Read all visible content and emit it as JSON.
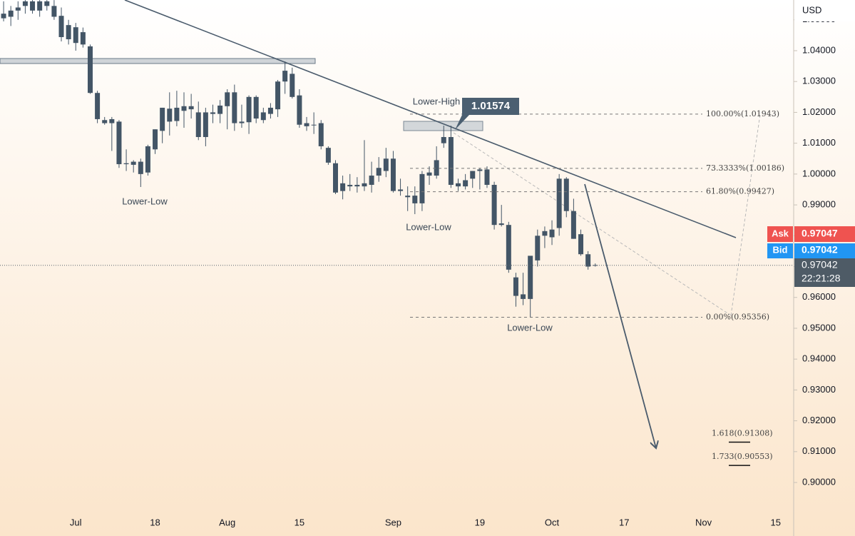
{
  "chart_data": {
    "type": "candlestick",
    "currency": "USD",
    "categories": [
      null,
      null,
      null,
      null,
      null,
      null,
      null,
      null,
      null,
      null,
      "Jul",
      null,
      null,
      null,
      null,
      null,
      null,
      null,
      null,
      null,
      null,
      "18",
      null,
      null,
      null,
      null,
      null,
      null,
      null,
      null,
      null,
      "Aug",
      null,
      null,
      null,
      null,
      null,
      null,
      null,
      null,
      null,
      "15",
      null,
      null,
      null,
      null,
      null,
      null,
      null,
      null,
      null,
      null,
      null,
      null,
      "Sep",
      null,
      null,
      null,
      null,
      null,
      null,
      null,
      null,
      null,
      null,
      null,
      "19",
      null,
      null,
      null,
      null,
      null,
      null,
      null,
      null,
      null,
      "Oct",
      null,
      null,
      null,
      null,
      null,
      null,
      null,
      null,
      null,
      "17",
      null,
      null,
      null,
      null,
      null,
      null,
      null,
      null,
      null,
      null,
      "Nov",
      null,
      null,
      null,
      null,
      null,
      null,
      null,
      null,
      null,
      "15",
      null,
      null
    ],
    "open": [
      1.052,
      1.051,
      1.053,
      1.0545,
      1.056,
      1.053,
      1.056,
      1.0545,
      1.0513,
      1.0483,
      1.0476,
      1.046,
      1.0414,
      1.0263,
      1.0175,
      1.0165,
      1.017,
      1.0035,
      1.003,
      1.0,
      1.0005,
      1.008,
      1.014,
      1.0212,
      1.0172,
      1.0205,
      1.022,
      1.02,
      1.012,
      1.02,
      1.0195,
      1.022,
      1.0265,
      1.0165,
      1.0168,
      1.025,
      1.0175,
      1.0195,
      1.021,
      1.03,
      1.0325,
      1.0255,
      1.0165,
      1.016,
      1.0165,
      1.0085,
      1.0035,
      0.9945,
      0.9965,
      0.996,
      0.996,
      0.9965,
      0.9995,
      1.001,
      1.005,
      0.995,
      0.993,
      0.993,
      0.9905,
      0.9995,
      0.9995,
      1.01,
      1.012,
      0.997,
      0.996,
      0.9985,
      1.0015,
      1.0015,
      0.9965,
      0.984,
      0.9835,
      0.9665,
      0.961,
      0.9595,
      0.972,
      0.98,
      0.9795,
      0.9825,
      0.9985,
      0.988,
      0.9805,
      0.974,
      0.9705,
      null,
      null,
      null,
      null,
      null,
      null,
      null,
      null,
      null,
      null,
      null,
      null,
      null,
      null,
      null,
      null,
      null,
      null,
      null,
      null,
      null,
      null,
      null,
      null,
      null,
      null,
      null
    ],
    "high": [
      1.056,
      1.0545,
      1.056,
      1.0564,
      1.0564,
      1.0564,
      1.0564,
      1.0564,
      1.054,
      1.05,
      1.049,
      1.0475,
      1.042,
      1.027,
      1.0185,
      1.0185,
      1.0175,
      1.008,
      1.0045,
      1.005,
      1.0095,
      1.0145,
      1.0215,
      1.0265,
      1.027,
      1.0265,
      1.026,
      1.0235,
      1.0215,
      1.0225,
      1.024,
      1.0275,
      1.029,
      1.0225,
      1.0255,
      1.0255,
      1.0215,
      1.023,
      1.0305,
      1.0365,
      1.0345,
      1.0275,
      1.0185,
      1.02,
      1.0175,
      1.009,
      1.0045,
      0.9995,
      1.0,
      0.999,
      1.011,
      1.004,
      1.0055,
      1.0085,
      1.0075,
      0.9985,
      0.996,
      0.996,
      1.001,
      1.0025,
      1.009,
      1.0157,
      1.0157,
      0.9985,
      1.0,
      1.001,
      1.002,
      1.0025,
      0.9975,
      0.99,
      0.9845,
      0.968,
      0.968,
      0.972,
      0.982,
      0.983,
      0.985,
      1.0,
      0.999,
      0.992,
      0.982,
      0.975,
      0.971,
      null,
      null,
      null,
      null,
      null,
      null,
      null,
      null,
      null,
      null,
      null,
      null,
      null,
      null,
      null,
      null,
      null,
      null,
      null,
      null,
      null,
      null,
      null,
      null,
      null,
      null,
      null
    ],
    "low": [
      1.0495,
      1.048,
      1.05,
      1.052,
      1.052,
      1.051,
      1.053,
      1.05,
      1.043,
      1.042,
      1.04,
      1.041,
      1.026,
      1.0165,
      1.016,
      1.0075,
      1.002,
      1.001,
      1.0005,
      0.9958,
      0.9995,
      1.0065,
      1.01,
      1.0125,
      1.0155,
      1.015,
      1.018,
      1.011,
      1.009,
      1.0165,
      1.0165,
      1.0145,
      1.014,
      1.015,
      1.013,
      1.0165,
      1.0165,
      1.018,
      1.0185,
      1.026,
      1.0245,
      1.015,
      1.014,
      1.013,
      1.008,
      1.003,
      0.9935,
      0.9918,
      0.9945,
      0.994,
      0.9945,
      0.994,
      0.9975,
      0.999,
      0.994,
      0.993,
      0.988,
      0.987,
      0.988,
      0.9965,
      0.9985,
      1.0085,
      0.9955,
      0.9945,
      0.995,
      0.9955,
      0.995,
      0.9955,
      0.982,
      0.983,
      0.968,
      0.957,
      0.9575,
      0.9536,
      0.97,
      0.976,
      0.977,
      0.98,
      0.986,
      0.979,
      0.9735,
      0.969,
      0.97,
      null,
      null,
      null,
      null,
      null,
      null,
      null,
      null,
      null,
      null,
      null,
      null,
      null,
      null,
      null,
      null,
      null,
      null,
      null,
      null,
      null,
      null,
      null,
      null,
      null,
      null,
      null
    ],
    "close": [
      1.0505,
      1.053,
      1.054,
      1.056,
      1.053,
      1.056,
      1.0545,
      1.051,
      1.0444,
      1.0437,
      1.0425,
      1.042,
      1.0263,
      1.0178,
      1.0165,
      1.0178,
      1.0032,
      1.0032,
      1.004,
      1.004,
      1.009,
      1.0145,
      1.0215,
      1.017,
      1.0215,
      1.022,
      1.021,
      1.012,
      1.02,
      1.0195,
      1.0222,
      1.0265,
      1.0165,
      1.017,
      1.025,
      1.018,
      1.02,
      1.0215,
      1.03,
      1.0335,
      1.025,
      1.016,
      1.0155,
      1.016,
      1.009,
      1.0037,
      0.994,
      0.997,
      0.996,
      0.9965,
      0.997,
      0.9995,
      1.002,
      1.005,
      0.9945,
      0.9945,
      0.9925,
      0.9905,
      1.0,
      1.0005,
      1.0045,
      1.012,
      0.9965,
      0.996,
      0.998,
      1.001,
      1.001,
      0.9965,
      0.9835,
      0.9835,
      0.969,
      0.9605,
      0.9595,
      0.9735,
      0.98,
      0.9815,
      0.982,
      0.9985,
      0.988,
      0.979,
      0.974,
      0.97,
      0.9704,
      null,
      null,
      null,
      null,
      null,
      null,
      null,
      null,
      null,
      null,
      null,
      null,
      null,
      null,
      null,
      null,
      null,
      null,
      null,
      null,
      null,
      null,
      null,
      null,
      null,
      null,
      null
    ],
    "color": "#435566",
    "ylim": [
      0.89098,
      1.05643
    ],
    "yticks": [
      {
        "value": 1.05,
        "label": "1.05000"
      },
      {
        "value": 1.04,
        "label": "1.04000"
      },
      {
        "value": 1.03,
        "label": "1.03000"
      },
      {
        "value": 1.02,
        "label": "1.02000"
      },
      {
        "value": 1.01,
        "label": "1.01000"
      },
      {
        "value": 1.0,
        "label": "1.00000"
      },
      {
        "value": 0.99,
        "label": "0.99000"
      },
      {
        "value": 0.98,
        "label": "0.98000"
      },
      {
        "value": 0.97,
        "label": "0.97000"
      },
      {
        "value": 0.96,
        "label": "0.96000"
      },
      {
        "value": 0.95,
        "label": "0.95000"
      },
      {
        "value": 0.94,
        "label": "0.94000"
      },
      {
        "value": 0.93,
        "label": "0.93000"
      },
      {
        "value": 0.92,
        "label": "0.92000"
      },
      {
        "value": 0.91,
        "label": "0.91000"
      },
      {
        "value": 0.9,
        "label": "0.90000"
      }
    ],
    "fib_levels": [
      {
        "label": "100.00%(1.01943)",
        "value": 1.01943
      },
      {
        "label": "73.3333%(1.00186)",
        "value": 1.00186
      },
      {
        "label": "61.80%(0.99427)",
        "value": 0.99427
      },
      {
        "label": "0.00%(0.95356)",
        "value": 0.95356
      }
    ],
    "extension_levels": [
      {
        "label": "1.618(0.91308)",
        "value": 0.91308
      },
      {
        "label": "1.733(0.90553)",
        "value": 0.90553
      }
    ],
    "annotations": [
      "Lower-Low",
      "Lower-Low",
      "Lower-High",
      "Lower-Low"
    ],
    "callout": 1.01574,
    "quote": {
      "ask_label": "Ask",
      "ask": 0.97047,
      "bid_label": "Bid",
      "bid": 0.97042,
      "last": 0.97042,
      "countdown": "22:21:28"
    }
  }
}
